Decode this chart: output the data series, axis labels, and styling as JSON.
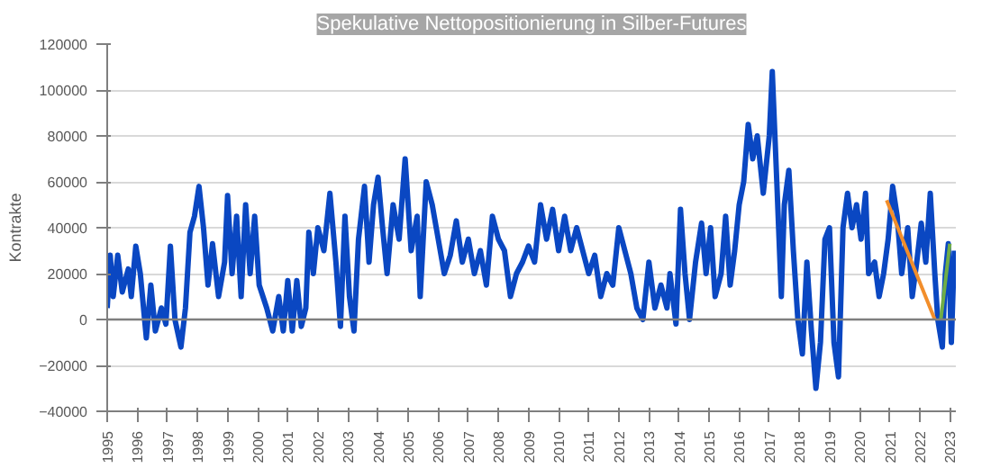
{
  "chart_data": {
    "type": "line",
    "title": "Spekulative Nettopositionierung in Silber-Futures",
    "ylabel": "Kontrakte",
    "xlim": [
      1995,
      2023.2
    ],
    "xticks": [
      1995,
      1996,
      1997,
      1998,
      1999,
      2000,
      2001,
      2002,
      2003,
      2004,
      2005,
      2006,
      2007,
      2008,
      2009,
      2010,
      2011,
      2012,
      2013,
      2014,
      2015,
      2016,
      2017,
      2018,
      2019,
      2020,
      2021,
      2022,
      2023
    ],
    "ylim": [
      -40000,
      120000
    ],
    "yticks": [
      -40000,
      -20000,
      0,
      20000,
      40000,
      60000,
      80000,
      100000,
      120000
    ],
    "grid": "y",
    "marker": "none",
    "line_style": "solid",
    "ref_lines": [
      {
        "axis": "y",
        "value": 0,
        "label": null,
        "color": "#7f7f7f"
      }
    ],
    "series": [
      {
        "color": "#0a47c2",
        "x": [
          1995,
          1995.1,
          1995.2,
          1995.35,
          1995.5,
          1995.7,
          1995.8,
          1995.95,
          1996.1,
          1996.3,
          1996.45,
          1996.6,
          1996.8,
          1996.95,
          1997.1,
          1997.25,
          1997.45,
          1997.6,
          1997.75,
          1997.9,
          1998.05,
          1998.2,
          1998.35,
          1998.5,
          1998.7,
          1998.9,
          1999.0,
          1999.15,
          1999.3,
          1999.45,
          1999.6,
          1999.75,
          1999.9,
          2000.05,
          2000.3,
          2000.5,
          2000.7,
          2000.85,
          2001.0,
          2001.15,
          2001.3,
          2001.45,
          2001.6,
          2001.7,
          2001.85,
          2002.0,
          2002.2,
          2002.4,
          2002.6,
          2002.75,
          2002.9,
          2003.05,
          2003.2,
          2003.35,
          2003.55,
          2003.7,
          2003.85,
          2004.0,
          2004.15,
          2004.3,
          2004.5,
          2004.7,
          2004.9,
          2005.1,
          2005.3,
          2005.4,
          2005.6,
          2005.8,
          2006.0,
          2006.2,
          2006.4,
          2006.6,
          2006.8,
          2007.0,
          2007.2,
          2007.4,
          2007.6,
          2007.8,
          2008.0,
          2008.2,
          2008.4,
          2008.6,
          2008.8,
          2009.0,
          2009.2,
          2009.4,
          2009.6,
          2009.8,
          2010.0,
          2010.2,
          2010.4,
          2010.6,
          2010.8,
          2011.0,
          2011.2,
          2011.4,
          2011.6,
          2011.8,
          2012.0,
          2012.2,
          2012.4,
          2012.6,
          2012.8,
          2013.0,
          2013.2,
          2013.4,
          2013.6,
          2013.7,
          2013.9,
          2014.05,
          2014.2,
          2014.35,
          2014.55,
          2014.75,
          2014.9,
          2015.05,
          2015.2,
          2015.4,
          2015.55,
          2015.7,
          2015.85,
          2016.0,
          2016.15,
          2016.3,
          2016.45,
          2016.6,
          2016.8,
          2017.0,
          2017.1,
          2017.25,
          2017.4,
          2017.5,
          2017.65,
          2017.8,
          2017.95,
          2018.1,
          2018.25,
          2018.4,
          2018.55,
          2018.7,
          2018.85,
          2019.0,
          2019.15,
          2019.3,
          2019.45,
          2019.6,
          2019.75,
          2019.9,
          2020.05,
          2020.2,
          2020.3,
          2020.5,
          2020.65,
          2020.8,
          2020.95,
          2021.1,
          2021.25,
          2021.4,
          2021.6,
          2021.75,
          2021.9,
          2022.05,
          2022.2,
          2022.35,
          2022.5,
          2022.6,
          2022.75,
          2022.85,
          2022.95,
          2023.05,
          2023.15
        ],
        "values": [
          5000,
          28000,
          10000,
          28000,
          12000,
          22000,
          10000,
          32000,
          20000,
          -8000,
          15000,
          -5000,
          5000,
          -2000,
          32000,
          0,
          -12000,
          5000,
          38000,
          45000,
          58000,
          40000,
          15000,
          33000,
          10000,
          25000,
          54000,
          20000,
          45000,
          10000,
          50000,
          20000,
          45000,
          15000,
          5000,
          -5000,
          10000,
          -5000,
          17000,
          -5000,
          17000,
          -3000,
          5000,
          38000,
          20000,
          40000,
          30000,
          55000,
          25000,
          -3000,
          45000,
          10000,
          -5000,
          35000,
          58000,
          25000,
          50000,
          62000,
          40000,
          20000,
          50000,
          35000,
          70000,
          30000,
          45000,
          10000,
          60000,
          50000,
          35000,
          20000,
          28000,
          43000,
          25000,
          35000,
          20000,
          30000,
          15000,
          45000,
          35000,
          30000,
          10000,
          20000,
          25000,
          32000,
          25000,
          50000,
          35000,
          48000,
          30000,
          45000,
          30000,
          40000,
          30000,
          20000,
          28000,
          10000,
          20000,
          15000,
          40000,
          30000,
          20000,
          5000,
          0,
          25000,
          5000,
          15000,
          5000,
          20000,
          -2000,
          48000,
          20000,
          0,
          25000,
          42000,
          20000,
          40000,
          10000,
          20000,
          45000,
          15000,
          30000,
          50000,
          60000,
          85000,
          70000,
          80000,
          55000,
          80000,
          108000,
          60000,
          10000,
          50000,
          65000,
          30000,
          0,
          -15000,
          25000,
          -5000,
          -30000,
          -10000,
          35000,
          40000,
          -10000,
          -25000,
          40000,
          55000,
          40000,
          50000,
          35000,
          55000,
          20000,
          25000,
          10000,
          20000,
          35000,
          58000,
          45000,
          20000,
          40000,
          10000,
          25000,
          42000,
          25000,
          55000,
          20000,
          0,
          -12000,
          20000,
          33000,
          -10000,
          30000
        ]
      },
      {
        "type": "line",
        "color": "#f28e2b",
        "x": [
          2020.9,
          2022.5
        ],
        "values": [
          52000,
          0
        ]
      },
      {
        "type": "line",
        "color": "#70ad47",
        "x": [
          2022.7,
          2023.0
        ],
        "values": [
          0,
          33000
        ]
      }
    ]
  }
}
